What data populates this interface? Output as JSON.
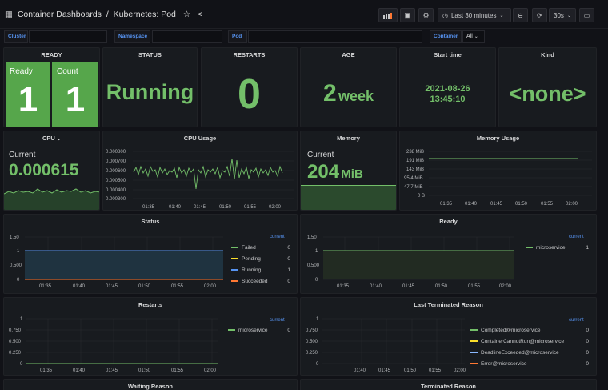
{
  "header": {
    "folder": "Container Dashboards",
    "sep": "/",
    "title": "Kubernetes: Pod",
    "time_range": "Last 30 minutes",
    "refresh": "30s"
  },
  "variables": {
    "cluster_label": "Cluster",
    "namespace_label": "Namespace",
    "pod_label": "Pod",
    "container_label": "Container",
    "container_value": "All"
  },
  "ready": {
    "title": "READY",
    "ready_label": "Ready",
    "ready_value": "1",
    "count_label": "Count",
    "count_value": "1"
  },
  "status_panel": {
    "title": "STATUS",
    "value": "Running"
  },
  "restarts_panel": {
    "title": "RESTARTS",
    "value": "0"
  },
  "age_panel": {
    "title": "AGE",
    "value": "2",
    "unit": "week"
  },
  "start_panel": {
    "title": "Start time",
    "date": "2021-08-26",
    "time": "13:45:10"
  },
  "kind_panel": {
    "title": "Kind",
    "value": "<none>"
  },
  "cpu_stat": {
    "title": "CPU",
    "label": "Current",
    "value": "0.000615"
  },
  "cpu_usage": {
    "title": "CPU Usage",
    "yticks": [
      "0.000800",
      "0.000700",
      "0.000600",
      "0.000500",
      "0.000400",
      "0.000300"
    ],
    "xticks": [
      "01:35",
      "01:40",
      "01:45",
      "01:50",
      "01:55",
      "02:00"
    ]
  },
  "memory_stat": {
    "title": "Memory",
    "label": "Current",
    "value": "204",
    "unit": "MiB"
  },
  "memory_usage": {
    "title": "Memory Usage",
    "yticks": [
      "238 MiB",
      "191 MiB",
      "143 MiB",
      "95.4 MiB",
      "47.7 MiB",
      "0 B"
    ],
    "xticks": [
      "01:35",
      "01:40",
      "01:45",
      "01:50",
      "01:55",
      "02:00"
    ]
  },
  "status_chart": {
    "title": "Status",
    "yticks": [
      "1.50",
      "1",
      "0.500",
      "0"
    ],
    "xticks": [
      "01:35",
      "01:40",
      "01:45",
      "01:50",
      "01:55",
      "02:00"
    ],
    "current_label": "current",
    "legend": [
      {
        "name": "Failed",
        "value": "0",
        "color": "#73bf69"
      },
      {
        "name": "Pending",
        "value": "0",
        "color": "#fade2a"
      },
      {
        "name": "Running",
        "value": "1",
        "color": "#5794f2"
      },
      {
        "name": "Succeeded",
        "value": "0",
        "color": "#ff7833"
      }
    ]
  },
  "ready_chart": {
    "title": "Ready",
    "yticks": [
      "1.50",
      "1",
      "0.500",
      "0"
    ],
    "xticks": [
      "01:35",
      "01:40",
      "01:45",
      "01:50",
      "01:55",
      "02:00"
    ],
    "current_label": "current",
    "legend": [
      {
        "name": "microservice",
        "value": "1",
        "color": "#73bf69"
      }
    ]
  },
  "restarts_chart": {
    "title": "Restarts",
    "yticks": [
      "1",
      "0.750",
      "0.500",
      "0.250",
      "0"
    ],
    "xticks": [
      "01:35",
      "01:40",
      "01:45",
      "01:50",
      "01:55",
      "02:00"
    ],
    "current_label": "current",
    "legend": [
      {
        "name": "microservice",
        "value": "0",
        "color": "#73bf69"
      }
    ]
  },
  "terminated_chart": {
    "title": "Last Terminated Reason",
    "yticks": [
      "1",
      "0.750",
      "0.500",
      "0.250",
      "0"
    ],
    "xticks": [
      "01:40",
      "01:45",
      "01:50",
      "01:55",
      "02:00"
    ],
    "current_label": "current",
    "legend": [
      {
        "name": "Completed@microservice",
        "value": "0",
        "color": "#73bf69"
      },
      {
        "name": "ContainerCannotRun@microservice",
        "value": "0",
        "color": "#fade2a"
      },
      {
        "name": "DeadlineExceeded@microservice",
        "value": "0",
        "color": "#8ab8ff"
      },
      {
        "name": "Error@microservice",
        "value": "0",
        "color": "#ff7833"
      }
    ]
  },
  "bottom": {
    "waiting": "Waiting Reason",
    "terminated": "Terminated Reason"
  }
}
